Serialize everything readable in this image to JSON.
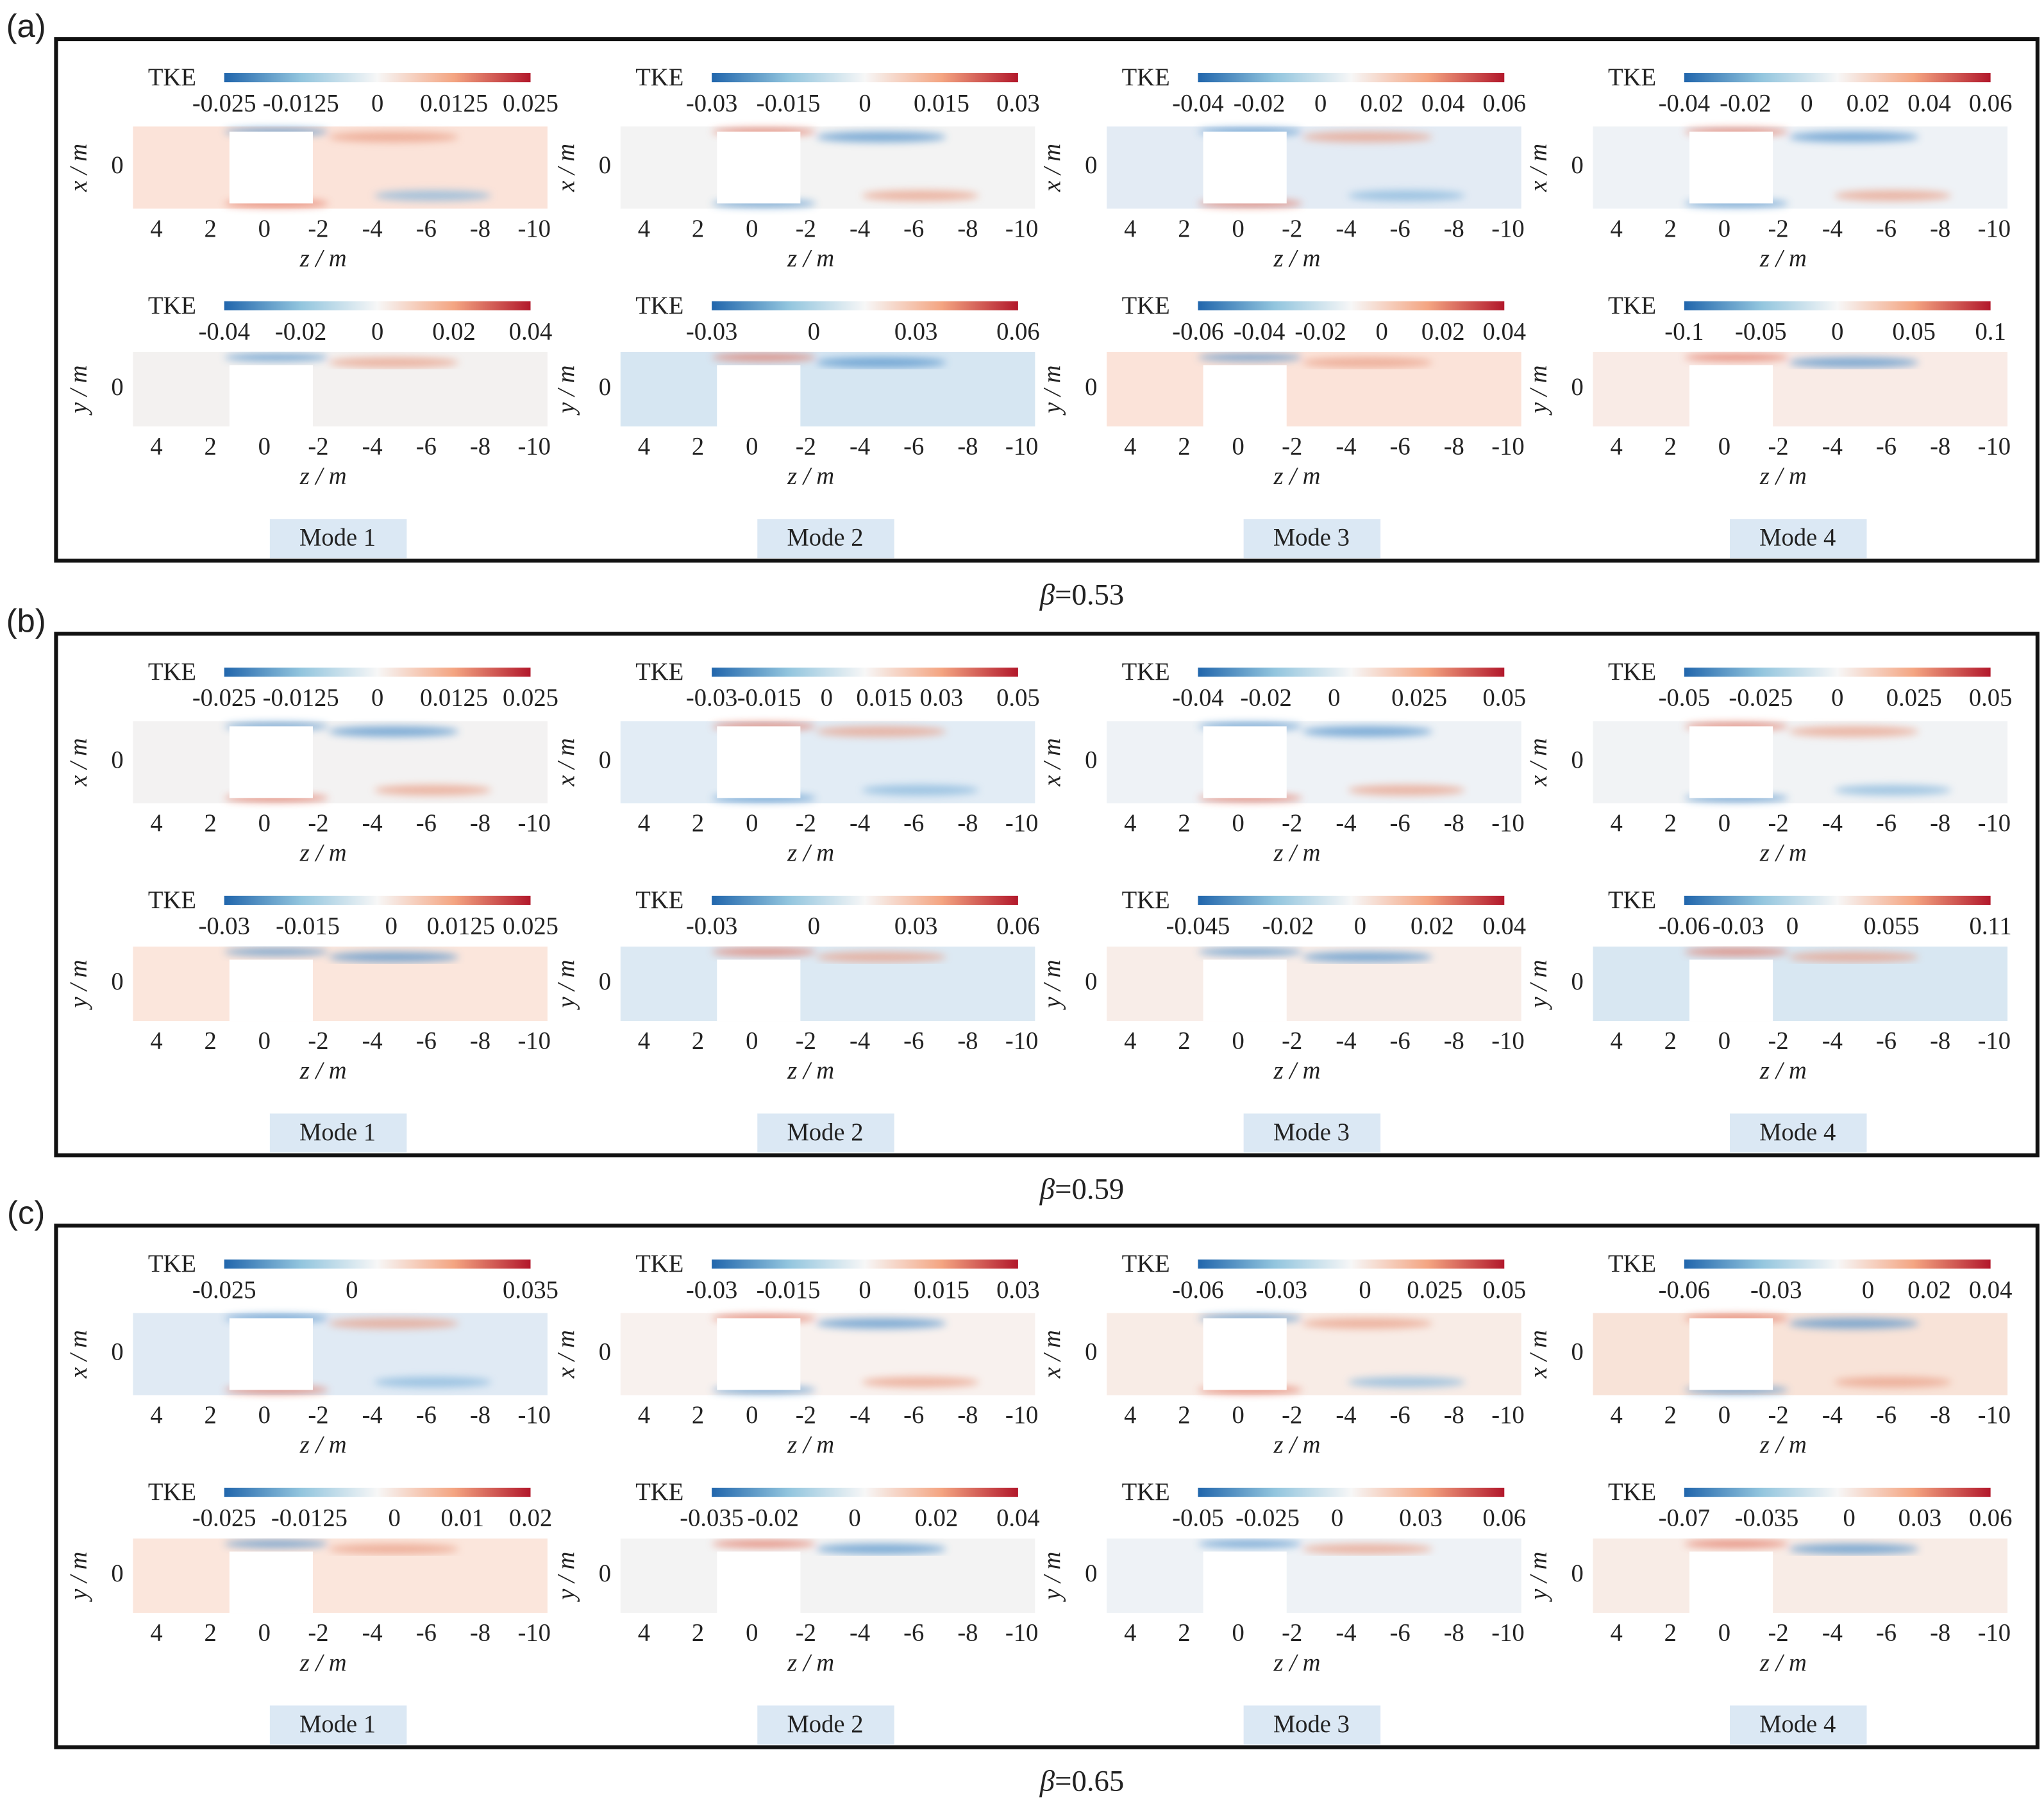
{
  "common": {
    "colorbar_label": "TKE",
    "z_label": "z / m",
    "x_label": "x / m",
    "y_label": "y / m",
    "y_tick": "0",
    "z_ticks": [
      "4",
      "2",
      "0",
      "-2",
      "-4",
      "-6",
      "-8",
      "-10"
    ]
  },
  "groups": [
    {
      "label": "(a)",
      "beta_symbol": "β",
      "beta_value": "=0.53",
      "modes": [
        {
          "label": "Mode 1",
          "xz_ticks": [
            "-0.025",
            "-0.0125",
            "0",
            "0.0125",
            "0.025"
          ],
          "yz_ticks": [
            "-0.04",
            "-0.02",
            "0",
            "0.02",
            "0.04"
          ]
        },
        {
          "label": "Mode 2",
          "xz_ticks": [
            "-0.03",
            "-0.015",
            "0",
            "0.015",
            "0.03"
          ],
          "yz_ticks": [
            "-0.03",
            "0",
            "0.03",
            "0.06"
          ]
        },
        {
          "label": "Mode 3",
          "xz_ticks": [
            "-0.04",
            "-0.02",
            "0",
            "0.02",
            "0.04",
            "0.06"
          ],
          "yz_ticks": [
            "-0.06",
            "-0.04",
            "-0.02",
            "0",
            "0.02",
            "0.04"
          ]
        },
        {
          "label": "Mode 4",
          "xz_ticks": [
            "-0.04",
            "-0.02",
            "0",
            "0.02",
            "0.04",
            "0.06"
          ],
          "yz_ticks": [
            "-0.1",
            "-0.05",
            "0",
            "0.05",
            "0.1"
          ]
        }
      ]
    },
    {
      "label": "(b)",
      "beta_symbol": "β",
      "beta_value": "=0.59",
      "modes": [
        {
          "label": "Mode 1",
          "xz_ticks": [
            "-0.025",
            "-0.0125",
            "0",
            "0.0125",
            "0.025"
          ],
          "yz_ticks": [
            "-0.03",
            "-0.015",
            "0",
            "0.0125",
            "0.025"
          ]
        },
        {
          "label": "Mode 2",
          "xz_ticks": [
            "-0.03",
            "-0.015",
            "0",
            "0.015",
            "0.03",
            "0.05"
          ],
          "yz_ticks": [
            "-0.03",
            "0",
            "0.03",
            "0.06"
          ]
        },
        {
          "label": "Mode 3",
          "xz_ticks": [
            "-0.04",
            "-0.02",
            "0",
            "0.025",
            "0.05"
          ],
          "yz_ticks": [
            "-0.045",
            "-0.02",
            "0",
            "0.02",
            "0.04"
          ]
        },
        {
          "label": "Mode 4",
          "xz_ticks": [
            "-0.05",
            "-0.025",
            "0",
            "0.025",
            "0.05"
          ],
          "yz_ticks": [
            "-0.06",
            "-0.03",
            "0",
            "0.055",
            "0.11"
          ]
        }
      ]
    },
    {
      "label": "(c)",
      "beta_symbol": "β",
      "beta_value": "=0.65",
      "modes": [
        {
          "label": "Mode 1",
          "xz_ticks": [
            "-0.025",
            "0",
            "0.035"
          ],
          "yz_ticks": [
            "-0.025",
            "-0.0125",
            "0",
            "0.01",
            "0.02"
          ]
        },
        {
          "label": "Mode 2",
          "xz_ticks": [
            "-0.03",
            "-0.015",
            "0",
            "0.015",
            "0.03"
          ],
          "yz_ticks": [
            "-0.035",
            "-0.02",
            "0",
            "0.02",
            "0.04"
          ]
        },
        {
          "label": "Mode 3",
          "xz_ticks": [
            "-0.06",
            "-0.03",
            "0",
            "0.025",
            "0.05"
          ],
          "yz_ticks": [
            "-0.05",
            "-0.025",
            "0",
            "0.03",
            "0.06"
          ]
        },
        {
          "label": "Mode 4",
          "xz_ticks": [
            "-0.06",
            "-0.03",
            "0",
            "0.02",
            "0.04"
          ],
          "yz_ticks": [
            "-0.07",
            "-0.035",
            "0",
            "0.03",
            "0.06"
          ]
        }
      ]
    }
  ]
}
